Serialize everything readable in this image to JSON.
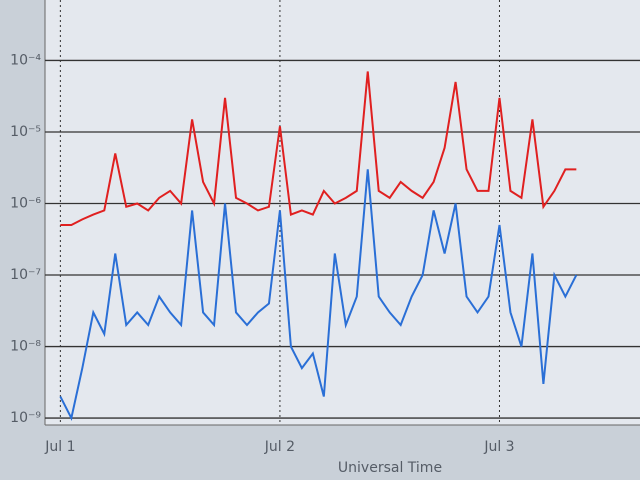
{
  "chart_data": {
    "type": "line",
    "x_label": "Universal Time",
    "log_y": true,
    "grid": true,
    "xlim": [
      0.93,
      3.64
    ],
    "ylim": [
      8e-10,
      0.0007
    ],
    "xticks": [
      {
        "value": 1,
        "label": "Jul 1"
      },
      {
        "value": 2,
        "label": "Jul 2"
      },
      {
        "value": 3,
        "label": "Jul 3"
      }
    ],
    "yticks": [
      {
        "value": 1e-09,
        "label": "10⁻⁹"
      },
      {
        "value": 1e-08,
        "label": "10⁻⁸"
      },
      {
        "value": 1e-07,
        "label": "10⁻⁷"
      },
      {
        "value": 1e-06,
        "label": "10⁻⁶"
      },
      {
        "value": 1e-05,
        "label": "10⁻⁵"
      },
      {
        "value": 0.0001,
        "label": "10⁻⁴"
      }
    ],
    "x": [
      1.0,
      1.05,
      1.1,
      1.15,
      1.2,
      1.25,
      1.3,
      1.35,
      1.4,
      1.45,
      1.5,
      1.55,
      1.6,
      1.65,
      1.7,
      1.75,
      1.8,
      1.85,
      1.9,
      1.95,
      2.0,
      2.05,
      2.1,
      2.15,
      2.2,
      2.25,
      2.3,
      2.35,
      2.4,
      2.45,
      2.5,
      2.55,
      2.6,
      2.65,
      2.7,
      2.75,
      2.8,
      2.85,
      2.9,
      2.95,
      3.0,
      3.05,
      3.1,
      3.15,
      3.2,
      3.25,
      3.3,
      3.35
    ],
    "series": [
      {
        "color": "#e02020",
        "values": [
          5e-07,
          5e-07,
          6e-07,
          7e-07,
          8e-07,
          5e-06,
          9e-07,
          1e-06,
          8e-07,
          1.2e-06,
          1.5e-06,
          1e-06,
          1.5e-05,
          2e-06,
          1e-06,
          3e-05,
          1.2e-06,
          1e-06,
          8e-07,
          9e-07,
          1.2e-05,
          7e-07,
          8e-07,
          7e-07,
          1.5e-06,
          1e-06,
          1.2e-06,
          1.5e-06,
          7e-05,
          1.5e-06,
          1.2e-06,
          2e-06,
          1.5e-06,
          1.2e-06,
          2e-06,
          6e-06,
          5e-05,
          3e-06,
          1.5e-06,
          1.5e-06,
          3e-05,
          1.5e-06,
          1.2e-06,
          1.5e-05,
          9e-07,
          1.5e-06,
          3e-06,
          3e-06
        ]
      },
      {
        "color": "#2a6fd6",
        "values": [
          2e-09,
          1e-09,
          5e-09,
          3e-08,
          1.5e-08,
          2e-07,
          2e-08,
          3e-08,
          2e-08,
          5e-08,
          3e-08,
          2e-08,
          8e-07,
          3e-08,
          2e-08,
          1e-06,
          3e-08,
          2e-08,
          3e-08,
          4e-08,
          8e-07,
          1e-08,
          5e-09,
          8e-09,
          2e-09,
          2e-07,
          2e-08,
          5e-08,
          3e-06,
          5e-08,
          3e-08,
          2e-08,
          5e-08,
          1e-07,
          8e-07,
          2e-07,
          1e-06,
          5e-08,
          3e-08,
          5e-08,
          5e-07,
          3e-08,
          1e-08,
          2e-07,
          3e-09,
          1e-07,
          5e-08,
          1e-07
        ]
      }
    ]
  }
}
